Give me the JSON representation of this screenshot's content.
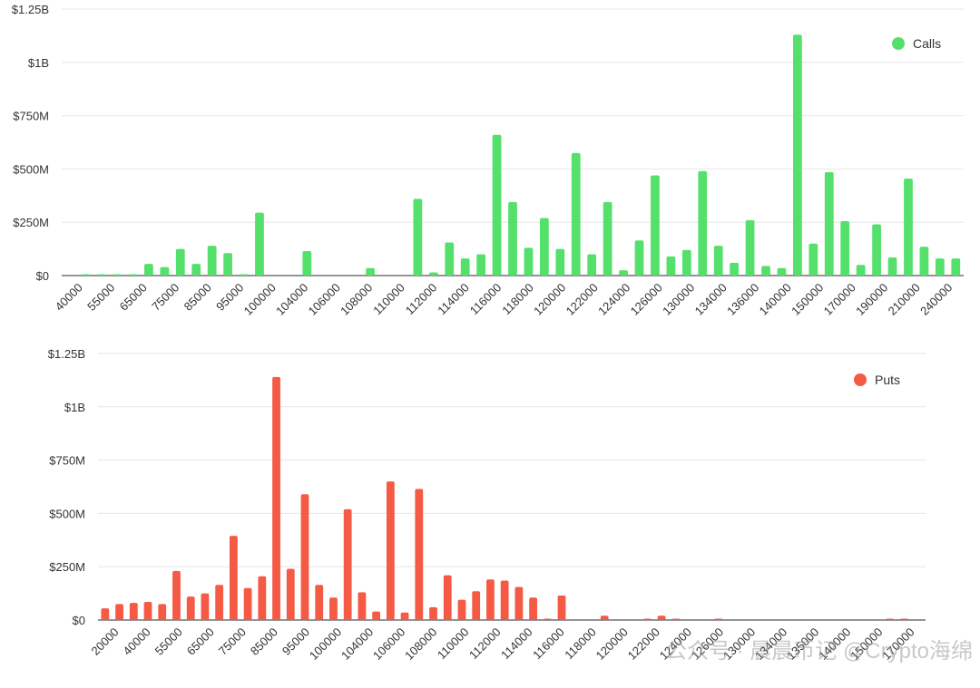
{
  "chart_data": [
    {
      "type": "bar",
      "title": "",
      "xlabel": "",
      "ylabel": "",
      "ylim": [
        0,
        1250000000
      ],
      "ytick_labels": [
        "$0",
        "$250M",
        "$500M",
        "$750M",
        "$1B",
        "$1.25B"
      ],
      "grid": true,
      "legend_position": "top-right",
      "color": "#55e06b",
      "x_tick_labels": [
        "40000",
        "55000",
        "65000",
        "75000",
        "85000",
        "95000",
        "100000",
        "104000",
        "106000",
        "108000",
        "110000",
        "112000",
        "114000",
        "116000",
        "118000",
        "120000",
        "122000",
        "124000",
        "126000",
        "130000",
        "134000",
        "136000",
        "140000",
        "150000",
        "170000",
        "190000",
        "210000",
        "240000"
      ],
      "series": [
        {
          "name": "Calls",
          "values": [
            0,
            5000000,
            2000000,
            5000000,
            2000000,
            55000000,
            40000000,
            125000000,
            55000000,
            140000000,
            105000000,
            2000000,
            295000000,
            0,
            0,
            115000000,
            0,
            0,
            0,
            35000000,
            0,
            0,
            360000000,
            15000000,
            155000000,
            80000000,
            100000000,
            660000000,
            345000000,
            130000000,
            270000000,
            125000000,
            575000000,
            100000000,
            345000000,
            25000000,
            165000000,
            470000000,
            90000000,
            120000000,
            490000000,
            140000000,
            60000000,
            260000000,
            45000000,
            35000000,
            1130000000,
            150000000,
            485000000,
            255000000,
            50000000,
            240000000,
            85000000,
            455000000,
            135000000,
            80000000,
            80000000
          ]
        }
      ]
    },
    {
      "type": "bar",
      "title": "",
      "xlabel": "",
      "ylabel": "",
      "ylim": [
        0,
        1250000000
      ],
      "ytick_labels": [
        "$0",
        "$250M",
        "$500M",
        "$750M",
        "$1B",
        "$1.25B"
      ],
      "grid": true,
      "legend_position": "top-right",
      "color": "#f55a45",
      "x_tick_labels": [
        "20000",
        "40000",
        "55000",
        "65000",
        "75000",
        "85000",
        "95000",
        "100000",
        "104000",
        "106000",
        "108000",
        "110000",
        "112000",
        "114000",
        "116000",
        "118000",
        "120000",
        "122000",
        "124000",
        "126000",
        "130000",
        "134000",
        "135000",
        "140000",
        "150000",
        "170000"
      ],
      "series": [
        {
          "name": "Puts",
          "values": [
            55000000,
            75000000,
            80000000,
            85000000,
            75000000,
            230000000,
            110000000,
            125000000,
            165000000,
            395000000,
            150000000,
            205000000,
            1140000000,
            240000000,
            590000000,
            165000000,
            105000000,
            520000000,
            130000000,
            40000000,
            650000000,
            35000000,
            615000000,
            60000000,
            210000000,
            95000000,
            135000000,
            190000000,
            185000000,
            155000000,
            105000000,
            5000000,
            115000000,
            0,
            0,
            20000000,
            0,
            0,
            2000000,
            20000000,
            2000000,
            0,
            0,
            5000000,
            0,
            0,
            0,
            0,
            0,
            0,
            0,
            0,
            0,
            0,
            0,
            2000000,
            3000000,
            0
          ]
        }
      ]
    }
  ],
  "watermark": "公众号 · 晨晨币记  @Crypto海绵"
}
